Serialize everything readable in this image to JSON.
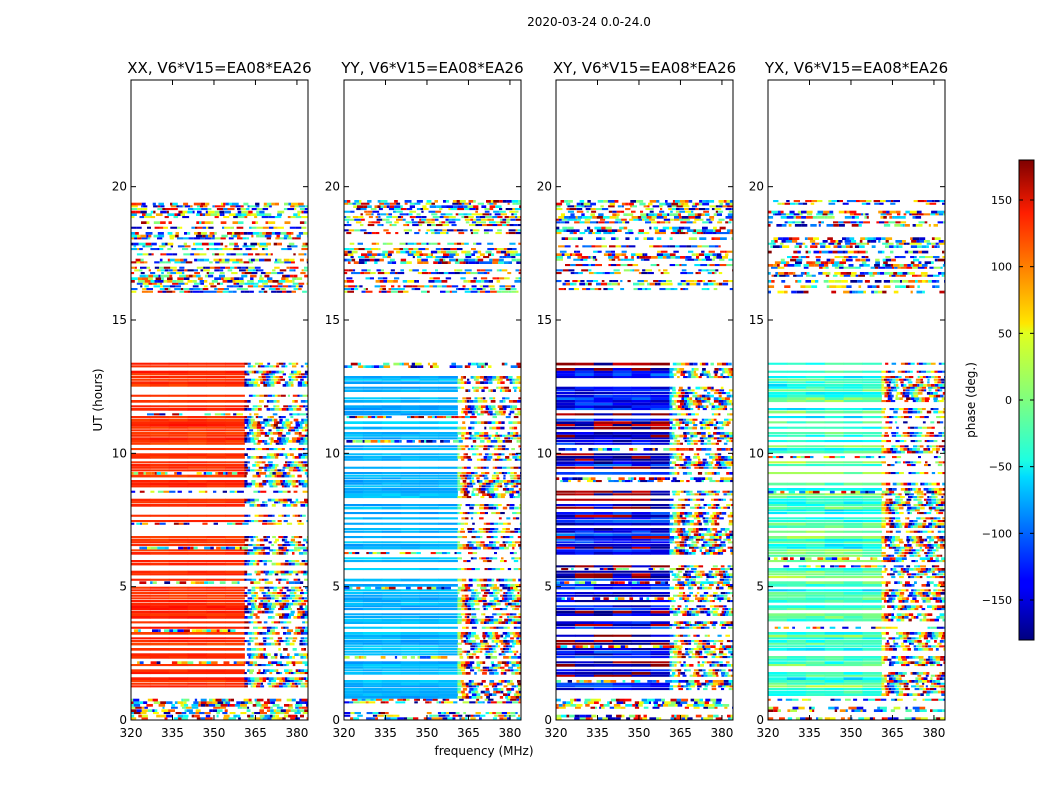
{
  "chart_data": {
    "type": "heatmap",
    "suptitle": "2020-03-24 0.0-24.0",
    "xlabel": "frequency (MHz)",
    "ylabel": "UT (hours)",
    "colorbar_label": "phase (deg.)",
    "colorbar_range": [
      -180,
      180
    ],
    "colorbar_ticks": [
      "150",
      "100",
      "50",
      "0",
      "−50",
      "−100",
      "−150"
    ],
    "colorbar_tick_values": [
      150,
      100,
      50,
      0,
      -50,
      -100,
      -150
    ],
    "colormap": "jet",
    "xlim": [
      320,
      384
    ],
    "ylim": [
      0,
      24
    ],
    "x_ticks": [
      "320",
      "335",
      "350",
      "365",
      "380"
    ],
    "x_tick_values": [
      320,
      335,
      350,
      365,
      380
    ],
    "y_ticks": [
      "0",
      "5",
      "10",
      "15",
      "20"
    ],
    "y_tick_values": [
      0,
      5,
      10,
      15,
      20
    ],
    "panels": [
      {
        "title": "XX, V6*V15=EA08*EA26",
        "base_phase": 120,
        "phase_spread": 15
      },
      {
        "title": "YY, V6*V15=EA08*EA26",
        "base_phase": -70,
        "phase_spread": 20
      },
      {
        "title": "XY, V6*V15=EA08*EA26",
        "base_phase": -150,
        "phase_spread": 90
      },
      {
        "title": "YX, V6*V15=EA08*EA26",
        "base_phase": -20,
        "phase_spread": 60
      }
    ],
    "data_ut_ranges": [
      [
        0.0,
        13.4
      ],
      [
        16.0,
        19.5
      ]
    ],
    "noisy_freq_start": 361
  },
  "colors": {
    "frame": "#000000",
    "background": "#ffffff"
  }
}
